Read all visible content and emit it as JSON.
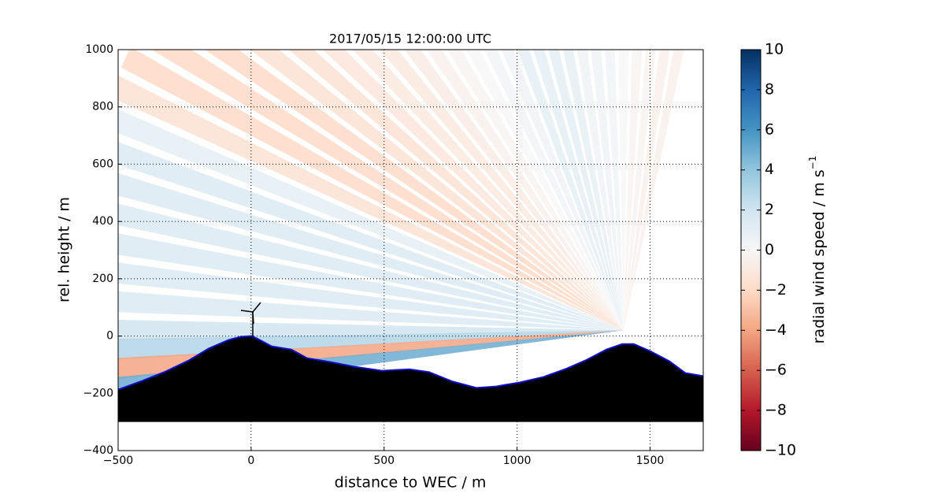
{
  "chart_data": {
    "type": "scan",
    "title": "2017/05/15 12:00:00 UTC",
    "x_label": "distance to WEC / m",
    "y_label": "rel. height / m",
    "xlim": [
      -500,
      1700
    ],
    "ylim": [
      -400,
      1000
    ],
    "xticks": [
      {
        "value": -500,
        "label": "−500"
      },
      0,
      500,
      1000,
      1500
    ],
    "yticks": [
      {
        "value": -400,
        "label": "−400"
      },
      {
        "value": -200,
        "label": "−200"
      },
      0,
      200,
      400,
      600,
      800,
      1000
    ],
    "grid": true,
    "colormap": "RdBu",
    "clim": [
      -10,
      10
    ],
    "colorbar_label": "radial wind speed / m s",
    "colorbar_label_sup": "−1",
    "colorbar_ticks": [
      {
        "value": -10,
        "label": "−10"
      },
      {
        "value": -8,
        "label": "−8"
      },
      {
        "value": -6,
        "label": "−6"
      },
      {
        "value": -4,
        "label": "−4"
      },
      {
        "value": -2,
        "label": "−2"
      },
      0,
      2,
      4,
      6,
      8,
      10
    ],
    "scan": {
      "origin_x": 1400,
      "origin_y": 20,
      "range": 2100,
      "rays": [
        {
          "angle": 78,
          "value": -0.5
        },
        {
          "angle": 81,
          "value": -0.5
        },
        {
          "angle": 84,
          "value": -0.3
        },
        {
          "angle": 87,
          "value": -0.3
        },
        {
          "angle": 90,
          "value": 0
        },
        {
          "angle": 93,
          "value": 0.3
        },
        {
          "angle": 96,
          "value": 0.5
        },
        {
          "angle": 99,
          "value": 0.5
        },
        {
          "angle": 102,
          "value": 0.8
        },
        {
          "angle": 105,
          "value": 1
        },
        {
          "angle": 108,
          "value": 1
        },
        {
          "angle": 111,
          "value": 1
        },
        {
          "angle": 114,
          "value": 0.5
        },
        {
          "angle": 117,
          "value": 0.3
        },
        {
          "angle": 120,
          "value": 0
        },
        {
          "angle": 123,
          "value": -0.3
        },
        {
          "angle": 126,
          "value": -0.5
        },
        {
          "angle": 129,
          "value": -0.8
        },
        {
          "angle": 132,
          "value": -1
        },
        {
          "angle": 135,
          "value": -1
        },
        {
          "angle": 138,
          "value": -1.2
        },
        {
          "angle": 141,
          "value": -1.5
        },
        {
          "angle": 144,
          "value": -1.5
        },
        {
          "angle": 147,
          "value": -2
        },
        {
          "angle": 150,
          "value": -2
        },
        {
          "angle": 153,
          "value": -2
        },
        {
          "angle": 156,
          "value": -1.5
        },
        {
          "angle": 159,
          "value": 1
        },
        {
          "angle": 162,
          "value": 1.5
        },
        {
          "angle": 165,
          "value": 1.5
        },
        {
          "angle": 168,
          "value": 1.5
        },
        {
          "angle": 171,
          "value": 1.5
        },
        {
          "angle": 174,
          "value": 1.5
        },
        {
          "angle": 177,
          "value": 1.5
        },
        {
          "angle": 180,
          "value": 2
        },
        {
          "angle": 182,
          "value": 3
        },
        {
          "angle": 184,
          "value": -4
        },
        {
          "angle": 186,
          "value": 5
        }
      ]
    },
    "terrain_base": -300,
    "terrain": {
      "x": [
        -500,
        -411,
        -322,
        -234,
        -160,
        -86,
        -41,
        3,
        33,
        77,
        151,
        210,
        299,
        388,
        492,
        595,
        669,
        758,
        847,
        921,
        1010,
        1099,
        1188,
        1262,
        1336,
        1395,
        1439,
        1499,
        1573,
        1632,
        1700
      ],
      "y": [
        -187,
        -157,
        -124,
        -85,
        -44,
        -14,
        -3,
        0,
        -14,
        -36,
        -47,
        -77,
        -91,
        -107,
        -121,
        -116,
        -126,
        -159,
        -181,
        -176,
        -162,
        -143,
        -113,
        -83,
        -47,
        -28,
        -28,
        -52,
        -88,
        -129,
        -140
      ]
    }
  }
}
